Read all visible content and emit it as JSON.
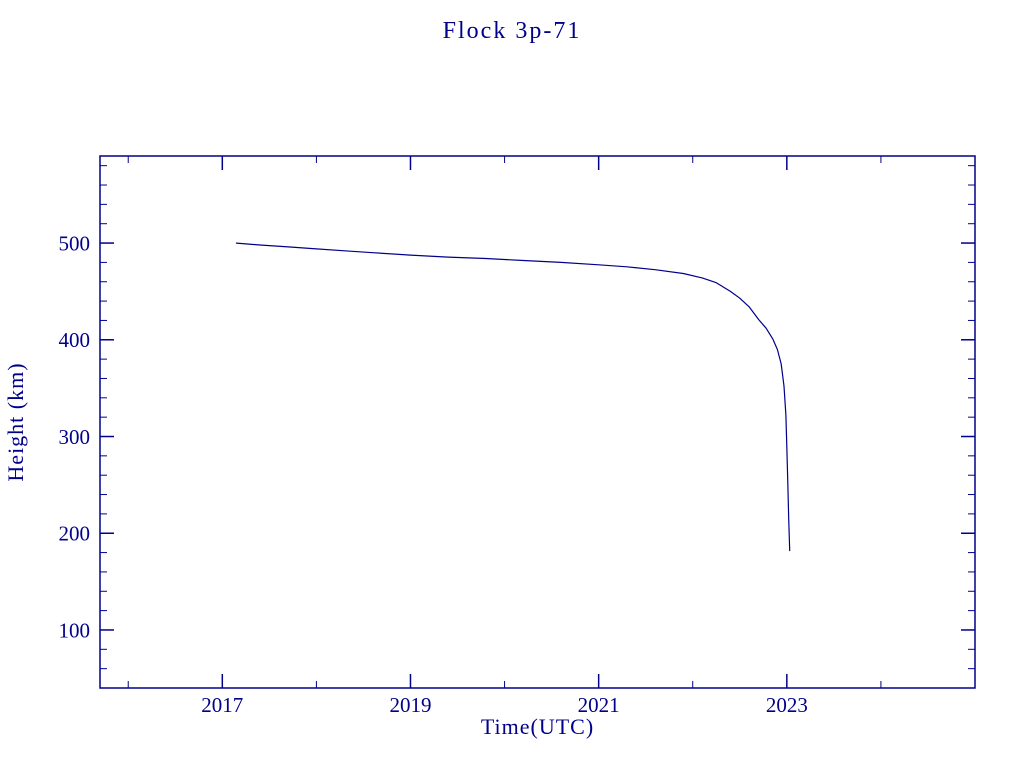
{
  "title": "Flock 3p-71",
  "chart_data": {
    "type": "line",
    "title": "Flock 3p-71",
    "xlabel": "Time(UTC)",
    "ylabel": "Height (km)",
    "xlim": [
      2015.7,
      2025.0
    ],
    "ylim": [
      40,
      590
    ],
    "x_major_ticks": [
      2017,
      2019,
      2021,
      2023
    ],
    "x_tick_labels": [
      "2017",
      "2019",
      "2021",
      "2023"
    ],
    "x_minor_step": 1,
    "y_major_ticks": [
      100,
      200,
      300,
      400,
      500
    ],
    "y_tick_labels": [
      "100",
      "200",
      "300",
      "400",
      "500"
    ],
    "y_minor_step": 20,
    "line_color": "#00008b",
    "background": "#ffffff",
    "grid": false,
    "legend": "none",
    "series": [
      {
        "name": "height",
        "x": [
          2017.15,
          2017.4,
          2017.7,
          2018.0,
          2018.3,
          2018.6,
          2019.0,
          2019.4,
          2019.8,
          2020.2,
          2020.6,
          2021.0,
          2021.3,
          2021.6,
          2021.9,
          2022.1,
          2022.25,
          2022.4,
          2022.5,
          2022.6,
          2022.7,
          2022.78,
          2022.85,
          2022.9,
          2022.94,
          2022.97,
          2022.99,
          2023.0,
          2023.01,
          2023.02,
          2023.03
        ],
        "y": [
          500,
          498,
          496,
          494,
          492,
          490,
          487.5,
          485.5,
          484,
          482,
          480,
          477.5,
          475.5,
          472.5,
          468.5,
          464,
          459,
          450,
          443,
          434,
          421,
          412,
          401,
          390,
          375,
          352,
          322,
          290,
          252,
          215,
          182
        ]
      }
    ]
  }
}
